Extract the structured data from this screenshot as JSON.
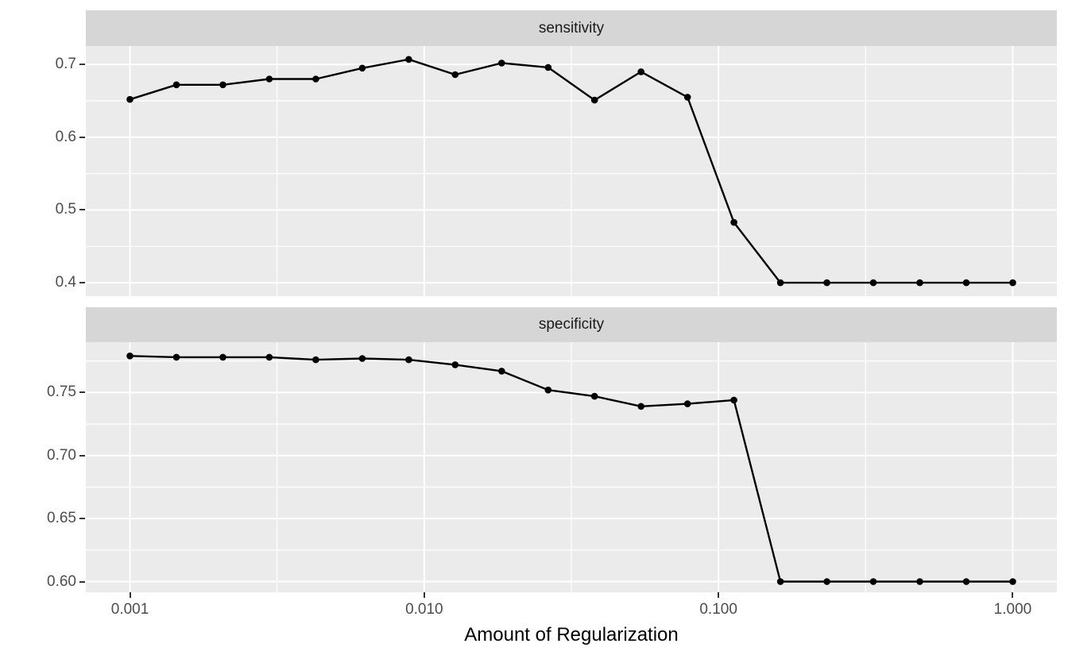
{
  "figure": {
    "background": "#FFFFFF",
    "panel_bg": "#EBEBEB",
    "strip_bg": "#D6D6D6",
    "grid_color": "#FFFFFF",
    "line_color": "#000000",
    "point_color": "#000000",
    "axis_text_color": "#4D4D4D",
    "strip_text_color": "#1A1A1A",
    "title_color": "#000000"
  },
  "chart_data": {
    "type": "line",
    "title": "",
    "xlabel": "Amount of Regularization",
    "ylabel": "",
    "x_scale": "log10",
    "grid": true,
    "legend": "none",
    "xlim_log10": [
      -3.15,
      0.15
    ],
    "x": [
      0.001,
      0.001438,
      0.002069,
      0.002976,
      0.004281,
      0.006158,
      0.008859,
      0.012743,
      0.01833,
      0.026367,
      0.037927,
      0.054556,
      0.078476,
      0.112884,
      0.162378,
      0.233572,
      0.335982,
      0.483293,
      0.695193,
      1.0
    ],
    "x_ticks": {
      "values": [
        0.001,
        0.01,
        0.1,
        1.0
      ],
      "labels": [
        "0.001",
        "0.010",
        "0.100",
        "1.000"
      ]
    },
    "x_minor": [
      0.0031623,
      0.031623,
      0.31623
    ],
    "facets": [
      {
        "label": "sensitivity",
        "values": [
          0.652,
          0.672,
          0.672,
          0.68,
          0.68,
          0.695,
          0.707,
          0.686,
          0.702,
          0.696,
          0.651,
          0.69,
          0.655,
          0.483,
          0.4,
          0.4,
          0.4,
          0.4,
          0.4,
          0.4
        ],
        "ylim": [
          0.3816,
          0.7253
        ],
        "y_ticks": {
          "values": [
            0.7,
            0.6,
            0.5,
            0.4
          ],
          "labels": [
            "0.7",
            "0.6",
            "0.5",
            "0.4"
          ]
        },
        "y_minor": [
          0.45,
          0.55,
          0.65
        ]
      },
      {
        "label": "specificity",
        "values": [
          0.779,
          0.778,
          0.778,
          0.778,
          0.776,
          0.777,
          0.776,
          0.772,
          0.767,
          0.752,
          0.747,
          0.739,
          0.741,
          0.744,
          0.6,
          0.6,
          0.6,
          0.6,
          0.6,
          0.6
        ],
        "ylim": [
          0.5915,
          0.7899
        ],
        "y_ticks": {
          "values": [
            0.75,
            0.7,
            0.65,
            0.6
          ],
          "labels": [
            "0.75",
            "0.70",
            "0.65",
            "0.60"
          ]
        },
        "y_minor": [
          0.625,
          0.675,
          0.725,
          0.775
        ]
      }
    ]
  }
}
